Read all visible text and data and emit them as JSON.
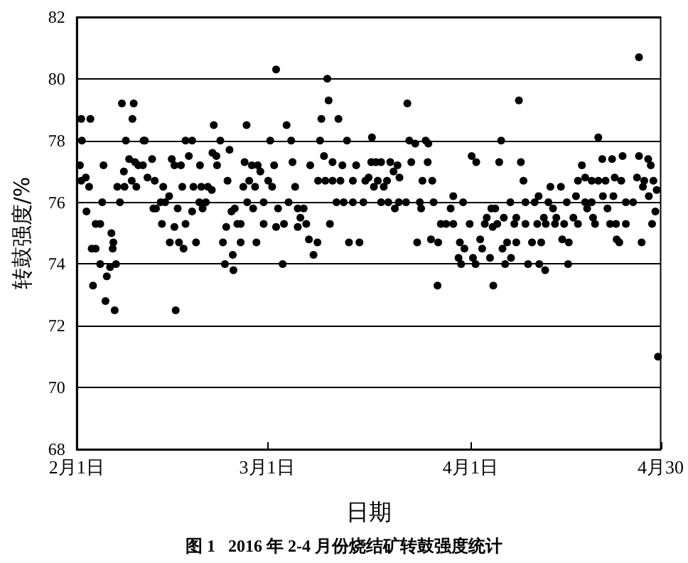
{
  "chart_data": {
    "type": "scatter",
    "xlabel": "日期",
    "ylabel": "转鼓强度/%",
    "annotations": [
      "图 1   2016 年 2-4 月份烧结矿转鼓强度统计"
    ],
    "xlim": [
      "2016-02-01",
      "2016-04-30"
    ],
    "xticks": [
      {
        "value": "2016-02-01",
        "label": "2月1日"
      },
      {
        "value": "2016-03-01",
        "label": "3月1日"
      },
      {
        "value": "2016-04-01",
        "label": "4月1日"
      },
      {
        "value": "2016-04-30",
        "label": "4月30"
      }
    ],
    "ylim": [
      68,
      82
    ],
    "yticks": [
      68,
      70,
      72,
      74,
      76,
      78,
      80,
      82
    ],
    "grid": "y",
    "marker": "circle",
    "series": [
      {
        "color": "#000000",
        "x": [
          "2016-02-01T16:48",
          "2016-02-03T02:24",
          "2016-02-07T21:36",
          "2016-02-09T16:48",
          "2016-02-09T12:00",
          "2016-02-01T19:12",
          "2016-02-08T12:00",
          "2016-02-11T04:48",
          "2016-02-11T09:36",
          "2016-02-17T14:24",
          "2016-02-18T14:24",
          "2016-02-21T21:36",
          "2016-02-21T16:48",
          "2016-02-01T12:00",
          "2016-02-05T02:24",
          "2016-02-09T00:00",
          "2016-02-09T21:36",
          "2016-02-10T09:36",
          "2016-02-11T02:24",
          "2016-02-12T12:00",
          "2016-02-15T12:00",
          "2016-02-15T21:36",
          "2016-02-16T21:36",
          "2016-02-19T19:12",
          "2016-02-18T02:24",
          "2016-02-01T16:48",
          "2016-02-02T09:36",
          "2016-02-02T21:36",
          "2016-02-08T04:48",
          "2016-02-09T09:36",
          "2016-02-11T19:12",
          "2016-02-12T21:36",
          "2016-02-07T04:48",
          "2016-02-08T07:12",
          "2016-02-10T02:24",
          "2016-02-14T04:48",
          "2016-02-17T02:24",
          "2016-02-18T19:12",
          "2016-02-20T00:00",
          "2016-02-21T00:00",
          "2016-02-21T14:24",
          "2016-02-02T12:00",
          "2016-02-04T21:36",
          "2016-02-07T14:24",
          "2016-02-13T19:12",
          "2016-02-14T12:00",
          "2016-02-15T02:24",
          "2016-02-19T16:48",
          "2016-02-20T16:48",
          "2016-02-12T16:48",
          "2016-02-13T02:24",
          "2016-02-16T09:36",
          "2016-02-20T04:48",
          "2016-02-18T14:24",
          "2016-02-03T21:36",
          "2016-02-04T14:24",
          "2016-02-14T00:00",
          "2016-02-15T21:36",
          "2016-02-17T14:24",
          "2016-02-06T07:12",
          "2016-02-06T14:24",
          "2016-02-06T12:00",
          "2016-02-03T07:12",
          "2016-02-03T21:36",
          "2016-02-15T04:48",
          "2016-02-16T14:24",
          "2016-02-17T07:12",
          "2016-02-19T04:48",
          "2016-02-04T14:24",
          "2016-02-06T02:24",
          "2016-02-05T14:24",
          "2016-02-07T00:00",
          "2016-02-03T12:00",
          "2016-02-05T09:36",
          "2016-02-06T19:12",
          "2016-02-16T02:24",
          "2016-03-02T09:36",
          "2016-03-10T04:48",
          "2016-03-10T09:36",
          "2016-02-26T21:36",
          "2016-03-04T00:00",
          "2016-03-09T07:12",
          "2016-03-11T21:36",
          "2016-02-22T21:36",
          "2016-03-01T12:00",
          "2016-03-04T16:48",
          "2016-03-09T02:24",
          "2016-03-13T04:48",
          "2016-02-24T07:12",
          "2016-02-22T07:12",
          "2016-03-09T16:48",
          "2016-02-22T09:36",
          "2016-02-26T14:24",
          "2016-02-27T16:48",
          "2016-02-28T14:24",
          "2016-02-29T00:00",
          "2016-03-02T02:24",
          "2016-03-04T21:36",
          "2016-03-07T14:24",
          "2016-03-11T00:00",
          "2016-03-12T12:00",
          "2016-03-14T14:24",
          "2016-02-24T00:00",
          "2016-03-01T04:48",
          "2016-03-08T19:12",
          "2016-03-09T21:36",
          "2016-03-11T00:00",
          "2016-03-12T04:48",
          "2016-03-14T02:24",
          "2016-03-16T00:00",
          "2016-02-26T09:36",
          "2016-02-28T04:48",
          "2016-02-27T07:12",
          "2016-03-01T19:12",
          "2016-03-05T07:12",
          "2016-02-27T00:00",
          "2016-02-29T12:00",
          "2016-03-04T07:12",
          "2016-03-11T14:24",
          "2016-03-12T16:48",
          "2016-03-14T02:24",
          "2016-03-15T16:48",
          "2016-02-24T14:24",
          "2016-02-25T02:24",
          "2016-02-27T21:36",
          "2016-03-02T16:48",
          "2016-03-05T16:48",
          "2016-03-06T14:24",
          "2016-03-06T02:24",
          "2016-02-23T19:12",
          "2016-02-25T12:00",
          "2016-02-26T00:00",
          "2016-02-29T12:00",
          "2016-03-02T09:36",
          "2016-03-03T14:24",
          "2016-03-05T16:48",
          "2016-03-07T00:00",
          "2016-03-10T14:24",
          "2016-02-23T07:12",
          "2016-02-26T00:00",
          "2016-02-28T09:36",
          "2016-03-07T09:36",
          "2016-03-08T16:48",
          "2016-03-13T12:00",
          "2016-03-15T02:24",
          "2016-02-24T19:12",
          "2016-03-08T02:24",
          "2016-02-23T14:24",
          "2016-02-24T21:36",
          "2016-03-03T09:36",
          "2016-03-22T09:36",
          "2016-04-08T09:36",
          "2016-03-17T00:00",
          "2016-03-22T16:48",
          "2016-03-23T14:24",
          "2016-03-25T04:48",
          "2016-03-25T14:24",
          "2016-04-05T16:48",
          "2016-03-16T21:36",
          "2016-03-17T14:24",
          "2016-03-18T09:36",
          "2016-03-19T19:12",
          "2016-03-20T21:36",
          "2016-03-20T07:12",
          "2016-03-23T00:00",
          "2016-03-25T12:00",
          "2016-04-01T04:48",
          "2016-04-01T21:36",
          "2016-04-05T09:36",
          "2016-04-08T16:48",
          "2016-03-16T12:00",
          "2016-03-17T21:36",
          "2016-03-19T07:12",
          "2016-03-21T04:48",
          "2016-03-24T16:48",
          "2016-03-26T04:48",
          "2016-03-17T07:12",
          "2016-03-18T19:12",
          "2016-03-18T09:36",
          "2016-03-19T12:00",
          "2016-03-21T02:24",
          "2016-03-22T04:48",
          "2016-03-24T07:12",
          "2016-03-26T09:36",
          "2016-03-30T21:36",
          "2016-03-29T09:36",
          "2016-04-07T02:24",
          "2016-03-20T12:00",
          "2016-03-24T12:00",
          "2016-03-29T00:00",
          "2016-04-04T04:48",
          "2016-04-04T19:12",
          "2016-04-06T02:24",
          "2016-04-03T12:00",
          "2016-04-08T00:00",
          "2016-03-27T12:00",
          "2016-03-28T07:12",
          "2016-03-29T09:36",
          "2016-03-31T21:36",
          "2016-04-03T04:48",
          "2016-04-04T09:36",
          "2016-04-05T02:24",
          "2016-04-07T16:48",
          "2016-03-23T21:36",
          "2016-03-26T00:00",
          "2016-03-27T02:24",
          "2016-03-30T09:36",
          "2016-03-31T02:24",
          "2016-04-02T12:00",
          "2016-04-02T19:12",
          "2016-04-05T21:36",
          "2016-04-06T14:24",
          "2016-04-08T00:00",
          "2016-03-30T04:48",
          "2016-03-30T14:24",
          "2016-04-01T09:36",
          "2016-04-01T19:12",
          "2016-04-04T00:00",
          "2016-04-06T07:12",
          "2016-04-07T04:48",
          "2016-03-27T00:00",
          "2016-04-04T12:00",
          "2016-04-26T16:48",
          "2016-04-20T12:00",
          "2016-04-18T00:00",
          "2016-04-21T02:24",
          "2016-04-22T14:24",
          "2016-04-24T04:48",
          "2016-04-26T16:48",
          "2016-04-28T02:24",
          "2016-04-28T12:00",
          "2016-04-09T02:24",
          "2016-04-17T09:36",
          "2016-04-18T12:00",
          "2016-04-19T12:00",
          "2016-04-20T12:00",
          "2016-04-21T14:24",
          "2016-04-23T00:00",
          "2016-04-24T00:00",
          "2016-04-26T09:36",
          "2016-04-27T12:00",
          "2016-04-28T21:36",
          "2016-04-13T04:48",
          "2016-04-14T19:12",
          "2016-04-27T07:12",
          "2016-04-29T09:36",
          "2016-04-11T09:36",
          "2016-04-17T02:24",
          "2016-04-21T04:48",
          "2016-04-22T19:12",
          "2016-04-28T04:48",
          "2016-04-09T09:36",
          "2016-04-10T19:12",
          "2016-04-12T21:36",
          "2016-04-15T16:48",
          "2016-04-18T12:00",
          "2016-04-19T12:00",
          "2016-04-24T16:48",
          "2016-04-25T19:12",
          "2016-04-13T14:24",
          "2016-04-18T19:12",
          "2016-04-21T21:36",
          "2016-04-29T04:48",
          "2016-04-12T04:48",
          "2016-04-14T02:24",
          "2016-04-16T16:48",
          "2016-04-19T16:48",
          "2016-04-09T09:36",
          "2016-04-11T04:48",
          "2016-04-12T12:00",
          "2016-04-13T21:36",
          "2016-04-15T07:12",
          "2016-04-17T09:36",
          "2016-04-20T00:00",
          "2016-04-22T07:12",
          "2016-04-23T04:48",
          "2016-04-24T16:48",
          "2016-04-28T16:48",
          "2016-04-10T09:36",
          "2016-04-11T19:12",
          "2016-04-15T00:00",
          "2016-04-16T00:00",
          "2016-04-23T07:12",
          "2016-04-23T16:48",
          "2016-04-27T02:24",
          "2016-04-09T19:12",
          "2016-04-11T12:00",
          "2016-04-12T09:36",
          "2016-04-15T21:36",
          "2016-04-29T14:24"
        ],
        "values": [
          78.7,
          78.7,
          79.2,
          79.2,
          78.7,
          78.0,
          78.0,
          78.0,
          78.0,
          78.0,
          78.0,
          78.5,
          77.6,
          77.2,
          77.2,
          77.4,
          77.3,
          77.2,
          77.2,
          77.4,
          77.4,
          77.2,
          77.2,
          77.2,
          77.5,
          76.7,
          76.8,
          76.5,
          77.0,
          76.7,
          76.8,
          76.7,
          76.5,
          76.5,
          76.5,
          76.5,
          76.5,
          76.5,
          76.5,
          76.5,
          76.4,
          75.7,
          76.0,
          76.0,
          76.0,
          76.0,
          76.2,
          76.0,
          76.0,
          75.8,
          75.8,
          75.8,
          75.8,
          75.7,
          75.3,
          75.3,
          75.3,
          75.2,
          75.3,
          75.0,
          74.7,
          74.5,
          74.5,
          74.5,
          74.7,
          74.7,
          74.5,
          74.7,
          74.0,
          73.9,
          73.6,
          74.0,
          73.3,
          72.8,
          72.5,
          72.5,
          80.3,
          80.0,
          79.3,
          78.5,
          78.5,
          78.7,
          78.7,
          78.0,
          78.0,
          78.0,
          78.0,
          78.0,
          77.7,
          77.5,
          77.5,
          77.2,
          77.3,
          77.2,
          77.2,
          77.0,
          77.2,
          77.3,
          77.2,
          77.3,
          77.2,
          77.2,
          76.7,
          76.7,
          76.7,
          76.7,
          76.7,
          76.7,
          76.7,
          76.7,
          76.5,
          76.5,
          76.7,
          76.5,
          76.5,
          76.0,
          76.0,
          76.0,
          76.0,
          76.0,
          76.0,
          76.0,
          75.7,
          75.8,
          75.8,
          75.8,
          75.8,
          75.8,
          75.5,
          75.2,
          75.3,
          75.3,
          75.3,
          75.2,
          75.3,
          75.2,
          75.3,
          75.3,
          74.7,
          74.7,
          74.7,
          74.8,
          74.7,
          74.7,
          74.7,
          74.3,
          74.3,
          74.0,
          73.8,
          74.0,
          79.2,
          79.3,
          78.1,
          78.0,
          77.9,
          78.0,
          77.9,
          78.0,
          77.3,
          77.3,
          77.3,
          77.3,
          77.2,
          77.0,
          77.3,
          77.3,
          77.5,
          77.3,
          77.3,
          77.3,
          76.8,
          76.7,
          76.7,
          76.8,
          76.7,
          76.7,
          76.5,
          76.5,
          76.0,
          76.0,
          76.0,
          76.0,
          76.0,
          76.0,
          76.0,
          76.2,
          76.0,
          75.8,
          75.8,
          75.8,
          75.8,
          75.8,
          75.5,
          75.5,
          75.5,
          75.3,
          75.3,
          75.3,
          75.3,
          75.3,
          75.2,
          75.3,
          75.3,
          74.7,
          74.8,
          74.7,
          74.7,
          74.5,
          74.8,
          74.5,
          74.5,
          74.7,
          74.7,
          74.2,
          74.0,
          74.2,
          74.0,
          74.2,
          74.0,
          74.2,
          73.3,
          73.3,
          80.7,
          78.1,
          77.2,
          77.4,
          77.4,
          77.5,
          77.5,
          77.4,
          77.2,
          76.7,
          76.7,
          76.8,
          76.7,
          76.7,
          76.7,
          76.8,
          76.7,
          76.8,
          76.7,
          76.7,
          76.5,
          76.5,
          76.5,
          76.4,
          76.2,
          76.2,
          76.2,
          76.2,
          76.2,
          76.0,
          76.0,
          76.0,
          76.0,
          76.0,
          76.0,
          76.0,
          76.0,
          75.8,
          75.8,
          75.8,
          75.7,
          75.5,
          75.5,
          75.5,
          75.5,
          75.3,
          75.3,
          75.3,
          75.3,
          75.3,
          75.3,
          75.3,
          75.3,
          75.3,
          75.3,
          75.3,
          74.7,
          74.7,
          74.8,
          74.7,
          74.8,
          74.7,
          74.7,
          74.0,
          74.0,
          73.8,
          74.0,
          71.0
        ]
      }
    ]
  }
}
